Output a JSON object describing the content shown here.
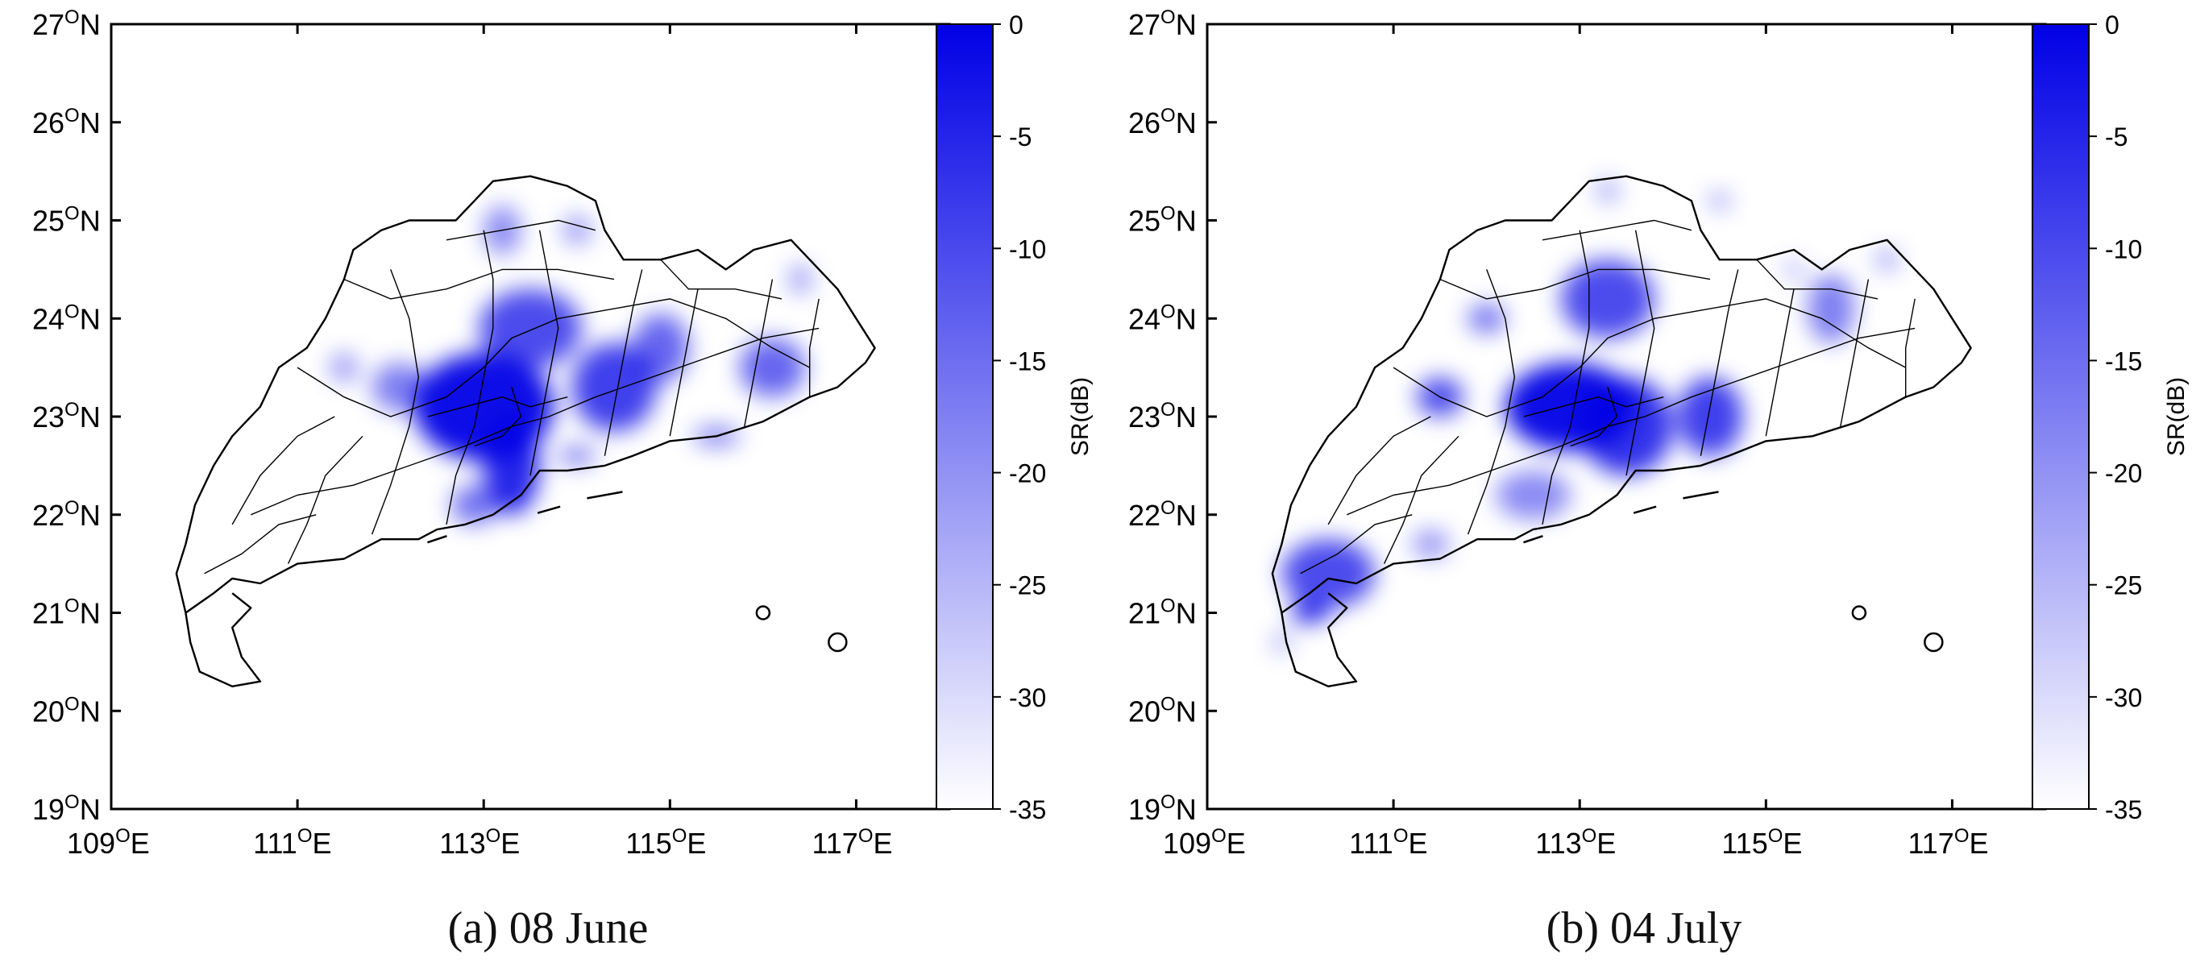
{
  "panels": [
    {
      "caption": "(a) 08 June",
      "map": {
        "lat_ticks": [
          "27",
          "26",
          "25",
          "24",
          "23",
          "22",
          "21",
          "20",
          "19"
        ],
        "lon_ticks": [
          "109",
          "111",
          "113",
          "115",
          "117"
        ],
        "lat_suffix": "N",
        "lon_suffix": "E",
        "degree_symbol": "O",
        "lon_range": [
          109,
          118
        ],
        "lat_range": [
          19,
          27
        ],
        "intensity_blobs": [
          {
            "lon": 113.0,
            "lat": 23.1,
            "rx": 0.75,
            "ry": 0.55,
            "level": 0.95
          },
          {
            "lon": 113.3,
            "lat": 22.5,
            "rx": 0.3,
            "ry": 0.5,
            "level": 0.85
          },
          {
            "lon": 113.5,
            "lat": 23.9,
            "rx": 0.55,
            "ry": 0.4,
            "level": 0.7
          },
          {
            "lon": 114.4,
            "lat": 23.3,
            "rx": 0.45,
            "ry": 0.45,
            "level": 0.75
          },
          {
            "lon": 114.9,
            "lat": 23.7,
            "rx": 0.3,
            "ry": 0.35,
            "level": 0.6
          },
          {
            "lon": 116.1,
            "lat": 23.5,
            "rx": 0.35,
            "ry": 0.3,
            "level": 0.6
          },
          {
            "lon": 112.1,
            "lat": 23.3,
            "rx": 0.3,
            "ry": 0.25,
            "level": 0.5
          },
          {
            "lon": 111.5,
            "lat": 23.5,
            "rx": 0.15,
            "ry": 0.15,
            "level": 0.4
          },
          {
            "lon": 113.2,
            "lat": 24.9,
            "rx": 0.2,
            "ry": 0.25,
            "level": 0.45
          },
          {
            "lon": 114.0,
            "lat": 24.9,
            "rx": 0.15,
            "ry": 0.15,
            "level": 0.4
          },
          {
            "lon": 115.5,
            "lat": 22.8,
            "rx": 0.25,
            "ry": 0.1,
            "level": 0.5
          },
          {
            "lon": 112.9,
            "lat": 22.1,
            "rx": 0.25,
            "ry": 0.2,
            "level": 0.55
          },
          {
            "lon": 114.0,
            "lat": 22.6,
            "rx": 0.2,
            "ry": 0.1,
            "level": 0.5
          },
          {
            "lon": 116.4,
            "lat": 24.4,
            "rx": 0.12,
            "ry": 0.15,
            "level": 0.4
          }
        ]
      },
      "colorbar": {
        "label": "SR(dB)",
        "ticks": [
          "0",
          "-5",
          "-10",
          "-15",
          "-20",
          "-25",
          "-30",
          "-35"
        ],
        "range": [
          -35,
          0
        ],
        "color_high": "#0000e6",
        "color_low": "#ffffff"
      }
    },
    {
      "caption": "(b) 04 July",
      "map": {
        "lat_ticks": [
          "27",
          "26",
          "25",
          "24",
          "23",
          "22",
          "21",
          "20",
          "19"
        ],
        "lon_ticks": [
          "109",
          "111",
          "113",
          "115",
          "117"
        ],
        "lat_suffix": "N",
        "lon_suffix": "E",
        "degree_symbol": "O",
        "lon_range": [
          109,
          118
        ],
        "lat_range": [
          19,
          27
        ],
        "intensity_blobs": [
          {
            "lon": 112.9,
            "lat": 23.1,
            "rx": 0.7,
            "ry": 0.45,
            "level": 0.95
          },
          {
            "lon": 113.5,
            "lat": 22.9,
            "rx": 0.5,
            "ry": 0.5,
            "level": 0.8
          },
          {
            "lon": 114.4,
            "lat": 23.0,
            "rx": 0.35,
            "ry": 0.4,
            "level": 0.75
          },
          {
            "lon": 113.3,
            "lat": 24.2,
            "rx": 0.5,
            "ry": 0.4,
            "level": 0.7
          },
          {
            "lon": 111.5,
            "lat": 23.2,
            "rx": 0.25,
            "ry": 0.2,
            "level": 0.7
          },
          {
            "lon": 112.0,
            "lat": 24.0,
            "rx": 0.2,
            "ry": 0.15,
            "level": 0.55
          },
          {
            "lon": 110.3,
            "lat": 21.4,
            "rx": 0.5,
            "ry": 0.35,
            "level": 0.7
          },
          {
            "lon": 110.1,
            "lat": 21.0,
            "rx": 0.2,
            "ry": 0.1,
            "level": 0.9
          },
          {
            "lon": 112.5,
            "lat": 22.2,
            "rx": 0.4,
            "ry": 0.25,
            "level": 0.45
          },
          {
            "lon": 115.7,
            "lat": 24.1,
            "rx": 0.25,
            "ry": 0.35,
            "level": 0.5
          },
          {
            "lon": 116.3,
            "lat": 24.6,
            "rx": 0.12,
            "ry": 0.12,
            "level": 0.35
          },
          {
            "lon": 115.3,
            "lat": 24.5,
            "rx": 0.1,
            "ry": 0.1,
            "level": 0.3
          },
          {
            "lon": 114.5,
            "lat": 25.2,
            "rx": 0.12,
            "ry": 0.08,
            "level": 0.4
          },
          {
            "lon": 113.3,
            "lat": 25.3,
            "rx": 0.12,
            "ry": 0.12,
            "level": 0.35
          },
          {
            "lon": 111.4,
            "lat": 21.7,
            "rx": 0.2,
            "ry": 0.15,
            "level": 0.4
          },
          {
            "lon": 109.8,
            "lat": 20.7,
            "rx": 0.1,
            "ry": 0.1,
            "level": 0.35
          }
        ]
      },
      "colorbar": {
        "label": "SR(dB)",
        "ticks": [
          "0",
          "-5",
          "-10",
          "-15",
          "-20",
          "-25",
          "-30",
          "-35"
        ],
        "range": [
          -35,
          0
        ],
        "color_high": "#0000e6",
        "color_low": "#ffffff"
      }
    }
  ]
}
